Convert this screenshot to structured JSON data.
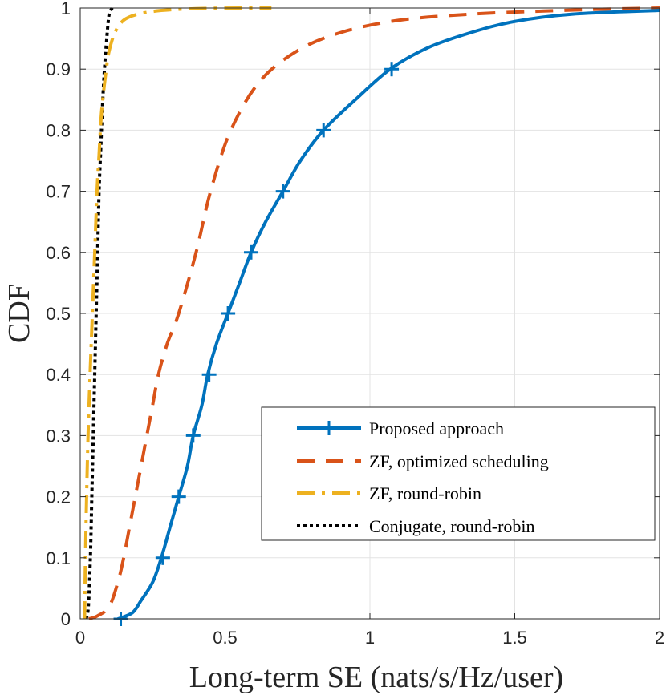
{
  "chart_data": {
    "type": "line",
    "title": "",
    "xlabel": "Long-term SE (nats/s/Hz/user)",
    "ylabel": "CDF",
    "xlim": [
      0,
      2
    ],
    "ylim": [
      0,
      1
    ],
    "grid": true,
    "legend_position": "lower-right",
    "x_ticks": [
      "0",
      "0.5",
      "1",
      "1.5",
      "2"
    ],
    "x_tick_values": [
      0,
      0.5,
      1,
      1.5,
      2
    ],
    "y_ticks": [
      "0",
      "0.1",
      "0.2",
      "0.3",
      "0.4",
      "0.5",
      "0.6",
      "0.7",
      "0.8",
      "0.9",
      "1"
    ],
    "y_tick_values": [
      0,
      0.1,
      0.2,
      0.3,
      0.4,
      0.5,
      0.6,
      0.7,
      0.8,
      0.9,
      1
    ],
    "series": [
      {
        "name": "Proposed approach",
        "color": "#0072BD",
        "style": "solid",
        "marker": "plus",
        "x": [
          0.13,
          0.18,
          0.21,
          0.25,
          0.28,
          0.31,
          0.34,
          0.37,
          0.39,
          0.42,
          0.44,
          0.47,
          0.51,
          0.55,
          0.59,
          0.64,
          0.7,
          0.76,
          0.84,
          0.95,
          1.07,
          1.2,
          1.35,
          1.5,
          1.7,
          2.0
        ],
        "y": [
          0.0,
          0.01,
          0.03,
          0.06,
          0.1,
          0.15,
          0.2,
          0.25,
          0.3,
          0.35,
          0.4,
          0.45,
          0.5,
          0.55,
          0.6,
          0.65,
          0.7,
          0.75,
          0.8,
          0.85,
          0.9,
          0.935,
          0.96,
          0.978,
          0.99,
          0.996
        ],
        "marker_points": [
          [
            0.14,
            0.0
          ],
          [
            0.285,
            0.1
          ],
          [
            0.34,
            0.2
          ],
          [
            0.39,
            0.3
          ],
          [
            0.445,
            0.4
          ],
          [
            0.51,
            0.5
          ],
          [
            0.59,
            0.6
          ],
          [
            0.7,
            0.7
          ],
          [
            0.84,
            0.8
          ],
          [
            1.075,
            0.9
          ]
        ]
      },
      {
        "name": "ZF, optimized scheduling",
        "color": "#D95319",
        "style": "dashed",
        "x": [
          0.03,
          0.06,
          0.1,
          0.13,
          0.15,
          0.17,
          0.19,
          0.21,
          0.23,
          0.25,
          0.27,
          0.3,
          0.34,
          0.4,
          0.45,
          0.52,
          0.62,
          0.75,
          0.9,
          1.1,
          1.35,
          1.6,
          1.8,
          2.0
        ],
        "y": [
          0.0,
          0.005,
          0.02,
          0.06,
          0.1,
          0.15,
          0.2,
          0.25,
          0.3,
          0.35,
          0.4,
          0.45,
          0.5,
          0.6,
          0.7,
          0.8,
          0.88,
          0.93,
          0.96,
          0.98,
          0.99,
          0.995,
          0.998,
          1.0
        ]
      },
      {
        "name": "ZF, round-robin",
        "color": "#EDB120",
        "style": "dashdot",
        "x": [
          0.015,
          0.018,
          0.022,
          0.027,
          0.034,
          0.042,
          0.05,
          0.058,
          0.065,
          0.072,
          0.08,
          0.09,
          0.1,
          0.12,
          0.15,
          0.2,
          0.28,
          0.4,
          0.55,
          0.66
        ],
        "y": [
          0.0,
          0.1,
          0.2,
          0.3,
          0.4,
          0.5,
          0.6,
          0.7,
          0.76,
          0.82,
          0.86,
          0.9,
          0.93,
          0.96,
          0.98,
          0.99,
          0.996,
          0.999,
          1.0,
          1.0
        ]
      },
      {
        "name": "Conjugate, round-robin",
        "color": "#000000",
        "style": "dotted",
        "x": [
          0.02,
          0.028,
          0.035,
          0.04,
          0.045,
          0.05,
          0.055,
          0.06,
          0.065,
          0.07,
          0.075,
          0.08,
          0.085,
          0.09,
          0.095,
          0.1,
          0.11
        ],
        "y": [
          0.0,
          0.02,
          0.1,
          0.2,
          0.3,
          0.4,
          0.5,
          0.6,
          0.7,
          0.76,
          0.82,
          0.87,
          0.91,
          0.94,
          0.97,
          0.99,
          1.0
        ]
      }
    ]
  }
}
